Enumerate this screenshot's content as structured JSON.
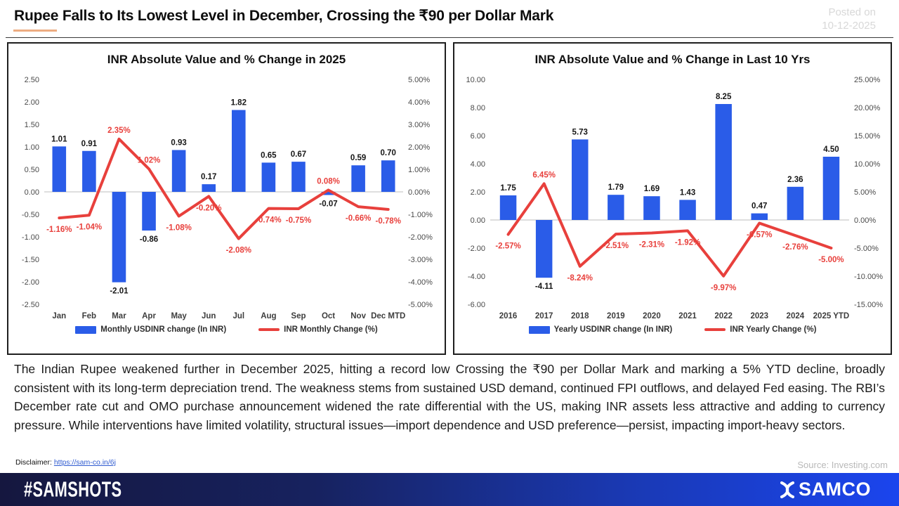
{
  "header": {
    "title": "Rupee Falls to Its Lowest Level in December, Crossing the ₹90 per Dollar Mark",
    "posted_label": "Posted on",
    "posted_date": "10-12-2025"
  },
  "chart_data": [
    {
      "type": "bar",
      "title": "INR Absolute Value and % Change in 2025",
      "categories": [
        "Jan",
        "Feb",
        "Mar",
        "Apr",
        "May",
        "Jun",
        "Jul",
        "Aug",
        "Sep",
        "Oct",
        "Nov",
        "Dec MTD"
      ],
      "series": [
        {
          "name": "Monthly USDINR change (In INR)",
          "kind": "bar",
          "color": "#2a5ce8",
          "values": [
            1.01,
            0.91,
            -2.01,
            -0.86,
            0.93,
            0.17,
            1.82,
            0.65,
            0.67,
            -0.07,
            0.59,
            0.7
          ]
        },
        {
          "name": "INR Monthly Change (%)",
          "kind": "line",
          "color": "#e8403c",
          "label_suffix": "%",
          "values": [
            -1.16,
            -1.04,
            2.35,
            1.02,
            -1.08,
            -0.2,
            -2.08,
            -0.74,
            -0.75,
            0.08,
            -0.66,
            -0.78
          ]
        }
      ],
      "left_axis": {
        "min": -2.5,
        "max": 2.5,
        "ticks": [
          "2.50",
          "2.00",
          "1.50",
          "1.00",
          "0.50",
          "0.00",
          "-0.50",
          "-1.00",
          "-1.50",
          "-2.00",
          "-2.50"
        ]
      },
      "right_axis": {
        "min": -5,
        "max": 5,
        "ticks": [
          "5.00%",
          "4.00%",
          "3.00%",
          "2.00%",
          "1.00%",
          "0.00%",
          "-1.00%",
          "-2.00%",
          "-3.00%",
          "-4.00%",
          "-5.00%"
        ]
      },
      "grid": "zero-line-only",
      "legend_position": "bottom"
    },
    {
      "type": "bar",
      "title": "INR Absolute Value and % Change in Last 10 Yrs",
      "categories": [
        "2016",
        "2017",
        "2018",
        "2019",
        "2020",
        "2021",
        "2022",
        "2023",
        "2024",
        "2025 YTD"
      ],
      "series": [
        {
          "name": "Yearly USDINR change (In INR)",
          "kind": "bar",
          "color": "#2a5ce8",
          "values": [
            1.75,
            -4.11,
            5.73,
            1.79,
            1.69,
            1.43,
            8.25,
            0.47,
            2.36,
            4.5
          ]
        },
        {
          "name": "INR Yearly Change (%)",
          "kind": "line",
          "color": "#e8403c",
          "label_suffix": "%",
          "values": [
            -2.57,
            6.45,
            -8.24,
            -2.51,
            -2.31,
            -1.92,
            -9.97,
            -0.57,
            -2.76,
            -5.0
          ]
        }
      ],
      "left_axis": {
        "min": -6,
        "max": 10,
        "ticks": [
          "10.00",
          "8.00",
          "6.00",
          "4.00",
          "2.00",
          "0.00",
          "-2.00",
          "-4.00",
          "-6.00"
        ]
      },
      "right_axis": {
        "min": -15,
        "max": 25,
        "ticks": [
          "25.00%",
          "20.00%",
          "15.00%",
          "10.00%",
          "5.00%",
          "0.00%",
          "-5.00%",
          "-10.00%",
          "-15.00%"
        ]
      },
      "grid": "zero-line-only",
      "legend_position": "bottom"
    }
  ],
  "body": {
    "paragraph": "The Indian Rupee weakened further in December 2025, hitting a record low Crossing the ₹90 per Dollar Mark and marking a 5% YTD decline, broadly consistent with its long-term depreciation trend. The weakness stems from sustained USD demand, continued FPI outflows, and delayed Fed easing. The RBI’s December rate cut and OMO purchase announcement widened the rate differential with the US, making INR assets less attractive and adding to currency pressure. While interventions have limited volatility, structural issues—import dependence and USD preference—persist,  impacting import-heavy sectors."
  },
  "disclaimer": {
    "label": "Disclaimer:",
    "link": "https://sam-co.in/6j"
  },
  "source": "Source: Investing.com",
  "footer": {
    "hashtag": "#SAMSHOTS",
    "brand": "SAMCO"
  },
  "colors": {
    "bar": "#2a5ce8",
    "line": "#e8403c",
    "accent_underline": "#edac81",
    "zero_line": "#c9c9c9",
    "footer_gradient_start": "#15173f",
    "footer_gradient_end": "#1b45ee"
  }
}
